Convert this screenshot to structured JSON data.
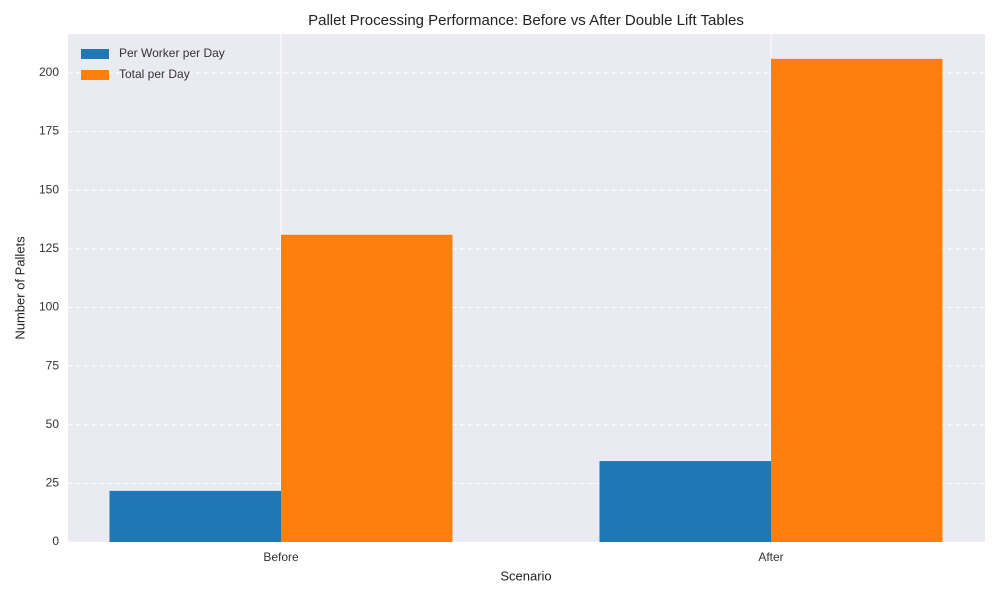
{
  "chart_data": {
    "type": "bar",
    "title": "Pallet Processing Performance: Before vs After Double Lift Tables",
    "x_label": "Scenario",
    "y_label": "Number of Pallets",
    "categories": [
      "Before",
      "After"
    ],
    "series": [
      {
        "name": "Per Worker per Day",
        "color": "#1f77b4",
        "values": [
          21.8,
          34.5
        ]
      },
      {
        "name": "Total per Day",
        "color": "#ff7f0e",
        "values": [
          131,
          206
        ]
      }
    ],
    "ylim": [
      0,
      216.6
    ],
    "yticks": [
      0,
      25,
      50,
      75,
      100,
      125,
      150,
      175,
      200
    ],
    "grid": true,
    "legend": "upper-left"
  }
}
